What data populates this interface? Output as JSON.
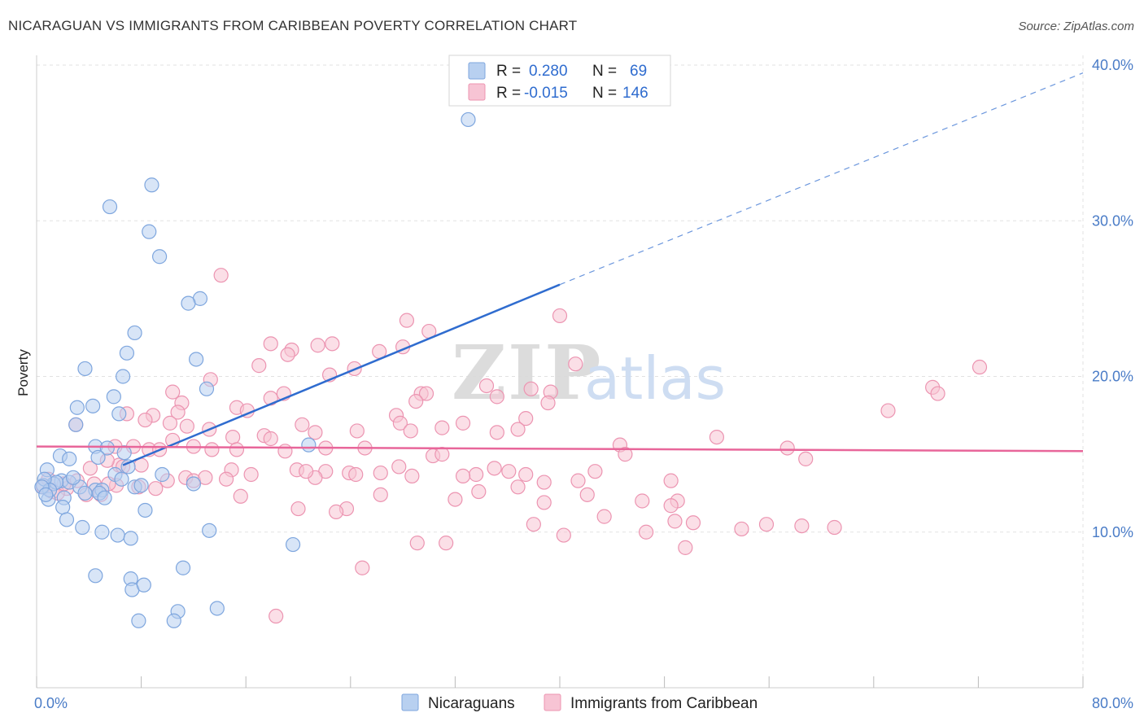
{
  "title": "NICARAGUAN VS IMMIGRANTS FROM CARIBBEAN POVERTY CORRELATION CHART",
  "source": "Source: ZipAtlas.com",
  "watermark": {
    "zip": "ZIP",
    "atlas": "atlas"
  },
  "colors": {
    "blue_fill": "#b8d0f0",
    "blue_stroke": "#7ea6de",
    "blue_line": "#2f6ccf",
    "pink_fill": "#f7c4d4",
    "pink_stroke": "#ec94b1",
    "pink_line": "#e8669a",
    "grid": "#e2e2e2",
    "tick_label": "#4a7cc7"
  },
  "legend": {
    "rows": [
      {
        "r_label": "R =",
        "r_value": "0.280",
        "n_label": "N =",
        "n_value": "69"
      },
      {
        "r_label": "R =",
        "r_value": "-0.015",
        "n_label": "N =",
        "n_value": "146"
      }
    ]
  },
  "chart_data": {
    "type": "scatter",
    "ylabel": "Poverty",
    "xlim": [
      0,
      80
    ],
    "ylim": [
      0,
      40
    ],
    "x_tick_labels": [
      {
        "value": 0,
        "label": "0.0%"
      },
      {
        "value": 80,
        "label": "80.0%"
      }
    ],
    "y_tick_labels": [
      {
        "value": 10,
        "label": "10.0%"
      },
      {
        "value": 20,
        "label": "20.0%"
      },
      {
        "value": 30,
        "label": "30.0%"
      },
      {
        "value": 40,
        "label": "40.0%"
      }
    ],
    "x_minor_ticks": [
      0,
      8,
      16,
      24,
      32,
      40,
      48,
      56,
      64,
      72,
      80
    ],
    "grid": true,
    "legend_placement": "top-center",
    "series": [
      {
        "name": "Nicaraguans",
        "r": 0.28,
        "n": 69,
        "trend": {
          "x": [
            6.6,
            40
          ],
          "y": [
            14.3,
            25.9
          ],
          "dashed_to": {
            "x": 80,
            "y": 39.5
          }
        },
        "points": [
          [
            33,
            36.5
          ],
          [
            8.8,
            32.3
          ],
          [
            5.6,
            30.9
          ],
          [
            8.6,
            29.3
          ],
          [
            9.4,
            27.7
          ],
          [
            12.5,
            25.0
          ],
          [
            11.6,
            24.7
          ],
          [
            7.5,
            22.8
          ],
          [
            6.9,
            21.5
          ],
          [
            12.2,
            21.1
          ],
          [
            3.7,
            20.5
          ],
          [
            6.6,
            20.0
          ],
          [
            13.0,
            19.2
          ],
          [
            4.3,
            18.1
          ],
          [
            3.1,
            18.0
          ],
          [
            5.9,
            18.7
          ],
          [
            6.3,
            17.6
          ],
          [
            3.0,
            16.9
          ],
          [
            4.5,
            15.5
          ],
          [
            5.4,
            15.4
          ],
          [
            20.8,
            15.6
          ],
          [
            4.7,
            14.8
          ],
          [
            6.7,
            15.1
          ],
          [
            1.8,
            14.9
          ],
          [
            2.5,
            14.7
          ],
          [
            0.8,
            14.0
          ],
          [
            1.9,
            13.3
          ],
          [
            2.5,
            13.2
          ],
          [
            1.3,
            13.1
          ],
          [
            0.5,
            13.0
          ],
          [
            3.3,
            12.9
          ],
          [
            4.5,
            12.7
          ],
          [
            5.0,
            12.7
          ],
          [
            6.0,
            13.7
          ],
          [
            6.5,
            13.4
          ],
          [
            7.5,
            12.9
          ],
          [
            8.0,
            13.0
          ],
          [
            9.6,
            13.7
          ],
          [
            12.0,
            13.1
          ],
          [
            3.7,
            12.5
          ],
          [
            4.8,
            12.5
          ],
          [
            5.2,
            12.2
          ],
          [
            2.1,
            12.2
          ],
          [
            0.9,
            12.1
          ],
          [
            2.0,
            11.6
          ],
          [
            8.3,
            11.4
          ],
          [
            2.3,
            10.8
          ],
          [
            3.5,
            10.3
          ],
          [
            5.0,
            10.0
          ],
          [
            6.2,
            9.8
          ],
          [
            7.2,
            9.6
          ],
          [
            13.2,
            10.1
          ],
          [
            19.6,
            9.2
          ],
          [
            11.2,
            7.7
          ],
          [
            4.5,
            7.2
          ],
          [
            7.2,
            7.0
          ],
          [
            7.3,
            6.3
          ],
          [
            8.2,
            6.6
          ],
          [
            10.8,
            4.9
          ],
          [
            13.8,
            5.1
          ],
          [
            7.8,
            4.3
          ],
          [
            10.5,
            4.3
          ],
          [
            1.5,
            13.2
          ],
          [
            0.6,
            13.4
          ],
          [
            1.0,
            12.7
          ],
          [
            2.8,
            13.5
          ],
          [
            7.0,
            14.2
          ],
          [
            0.4,
            12.9
          ],
          [
            0.7,
            12.4
          ]
        ]
      },
      {
        "name": "Immigrants from Caribbean",
        "r": -0.015,
        "n": 146,
        "trend": {
          "x": [
            0,
            80
          ],
          "y": [
            15.5,
            15.2
          ]
        },
        "points": [
          [
            14.1,
            26.5
          ],
          [
            40.0,
            23.9
          ],
          [
            28.3,
            23.6
          ],
          [
            30.0,
            22.9
          ],
          [
            17.9,
            22.1
          ],
          [
            21.5,
            22.0
          ],
          [
            22.6,
            22.1
          ],
          [
            19.5,
            21.7
          ],
          [
            19.2,
            21.4
          ],
          [
            26.2,
            21.6
          ],
          [
            28.0,
            21.9
          ],
          [
            41.2,
            20.8
          ],
          [
            17.0,
            20.7
          ],
          [
            24.3,
            20.5
          ],
          [
            22.4,
            20.1
          ],
          [
            13.3,
            19.8
          ],
          [
            34.4,
            19.4
          ],
          [
            37.8,
            19.2
          ],
          [
            39.3,
            19.0
          ],
          [
            10.4,
            19.0
          ],
          [
            29.4,
            18.9
          ],
          [
            29.8,
            18.9
          ],
          [
            18.9,
            18.9
          ],
          [
            17.9,
            18.6
          ],
          [
            35.2,
            18.7
          ],
          [
            29.0,
            18.4
          ],
          [
            39.1,
            18.3
          ],
          [
            11.1,
            18.3
          ],
          [
            15.3,
            18.0
          ],
          [
            16.1,
            17.8
          ],
          [
            10.8,
            17.7
          ],
          [
            8.9,
            17.5
          ],
          [
            6.9,
            17.6
          ],
          [
            27.5,
            17.5
          ],
          [
            37.4,
            17.3
          ],
          [
            8.3,
            17.2
          ],
          [
            10.2,
            17.0
          ],
          [
            32.6,
            17.0
          ],
          [
            27.8,
            17.0
          ],
          [
            20.3,
            16.9
          ],
          [
            3.0,
            16.9
          ],
          [
            11.5,
            16.8
          ],
          [
            31.0,
            16.7
          ],
          [
            28.6,
            16.5
          ],
          [
            13.2,
            16.6
          ],
          [
            24.5,
            16.5
          ],
          [
            36.8,
            16.6
          ],
          [
            21.3,
            16.4
          ],
          [
            35.2,
            16.4
          ],
          [
            15.0,
            16.1
          ],
          [
            17.4,
            16.2
          ],
          [
            17.9,
            16.0
          ],
          [
            10.4,
            15.9
          ],
          [
            52.0,
            16.1
          ],
          [
            8.6,
            15.3
          ],
          [
            6.0,
            15.5
          ],
          [
            12.0,
            15.5
          ],
          [
            15.3,
            15.3
          ],
          [
            13.4,
            15.3
          ],
          [
            19.0,
            15.2
          ],
          [
            22.1,
            15.4
          ],
          [
            25.1,
            15.4
          ],
          [
            30.3,
            14.9
          ],
          [
            31.0,
            15.0
          ],
          [
            44.6,
            15.6
          ],
          [
            45.0,
            15.0
          ],
          [
            57.4,
            15.4
          ],
          [
            58.8,
            14.7
          ],
          [
            7.4,
            15.5
          ],
          [
            9.4,
            15.3
          ],
          [
            6.3,
            14.3
          ],
          [
            6.6,
            14.2
          ],
          [
            8.0,
            14.3
          ],
          [
            5.4,
            14.6
          ],
          [
            4.1,
            14.1
          ],
          [
            14.9,
            14.0
          ],
          [
            19.9,
            14.0
          ],
          [
            22.1,
            13.9
          ],
          [
            23.9,
            13.8
          ],
          [
            27.7,
            14.2
          ],
          [
            26.3,
            13.8
          ],
          [
            33.6,
            13.7
          ],
          [
            35.0,
            14.1
          ],
          [
            36.1,
            13.9
          ],
          [
            37.4,
            13.7
          ],
          [
            42.7,
            13.9
          ],
          [
            41.4,
            13.3
          ],
          [
            38.8,
            13.2
          ],
          [
            32.6,
            13.6
          ],
          [
            24.4,
            13.7
          ],
          [
            21.3,
            13.5
          ],
          [
            20.6,
            13.9
          ],
          [
            16.4,
            13.7
          ],
          [
            11.4,
            13.5
          ],
          [
            12.0,
            13.3
          ],
          [
            12.9,
            13.5
          ],
          [
            10.0,
            13.3
          ],
          [
            6.1,
            13.0
          ],
          [
            5.5,
            13.1
          ],
          [
            4.4,
            13.1
          ],
          [
            3.1,
            13.3
          ],
          [
            2.3,
            12.8
          ],
          [
            1.2,
            12.6
          ],
          [
            3.8,
            12.4
          ],
          [
            4.9,
            12.4
          ],
          [
            36.8,
            12.9
          ],
          [
            48.5,
            13.3
          ],
          [
            15.6,
            12.3
          ],
          [
            26.3,
            12.4
          ],
          [
            33.8,
            12.6
          ],
          [
            42.1,
            12.4
          ],
          [
            46.3,
            12.0
          ],
          [
            49.0,
            12.0
          ],
          [
            48.5,
            11.7
          ],
          [
            20.0,
            11.5
          ],
          [
            23.7,
            11.5
          ],
          [
            22.9,
            11.3
          ],
          [
            32.0,
            12.1
          ],
          [
            38.8,
            11.9
          ],
          [
            43.4,
            11.0
          ],
          [
            38.0,
            10.5
          ],
          [
            40.3,
            9.8
          ],
          [
            46.6,
            10.0
          ],
          [
            50.2,
            10.6
          ],
          [
            48.8,
            10.7
          ],
          [
            53.9,
            10.2
          ],
          [
            55.8,
            10.5
          ],
          [
            58.5,
            10.4
          ],
          [
            61.0,
            10.3
          ],
          [
            29.1,
            9.3
          ],
          [
            31.3,
            9.3
          ],
          [
            49.6,
            9.0
          ],
          [
            24.9,
            7.7
          ],
          [
            18.3,
            4.6
          ],
          [
            65.1,
            17.8
          ],
          [
            68.5,
            19.3
          ],
          [
            68.9,
            18.9
          ],
          [
            72.1,
            20.6
          ],
          [
            0.5,
            12.9
          ],
          [
            1.6,
            12.5
          ],
          [
            2.1,
            13.1
          ],
          [
            0.9,
            13.4
          ],
          [
            9.1,
            12.8
          ],
          [
            7.8,
            12.9
          ],
          [
            14.5,
            13.4
          ],
          [
            28.7,
            13.6
          ]
        ]
      }
    ]
  }
}
